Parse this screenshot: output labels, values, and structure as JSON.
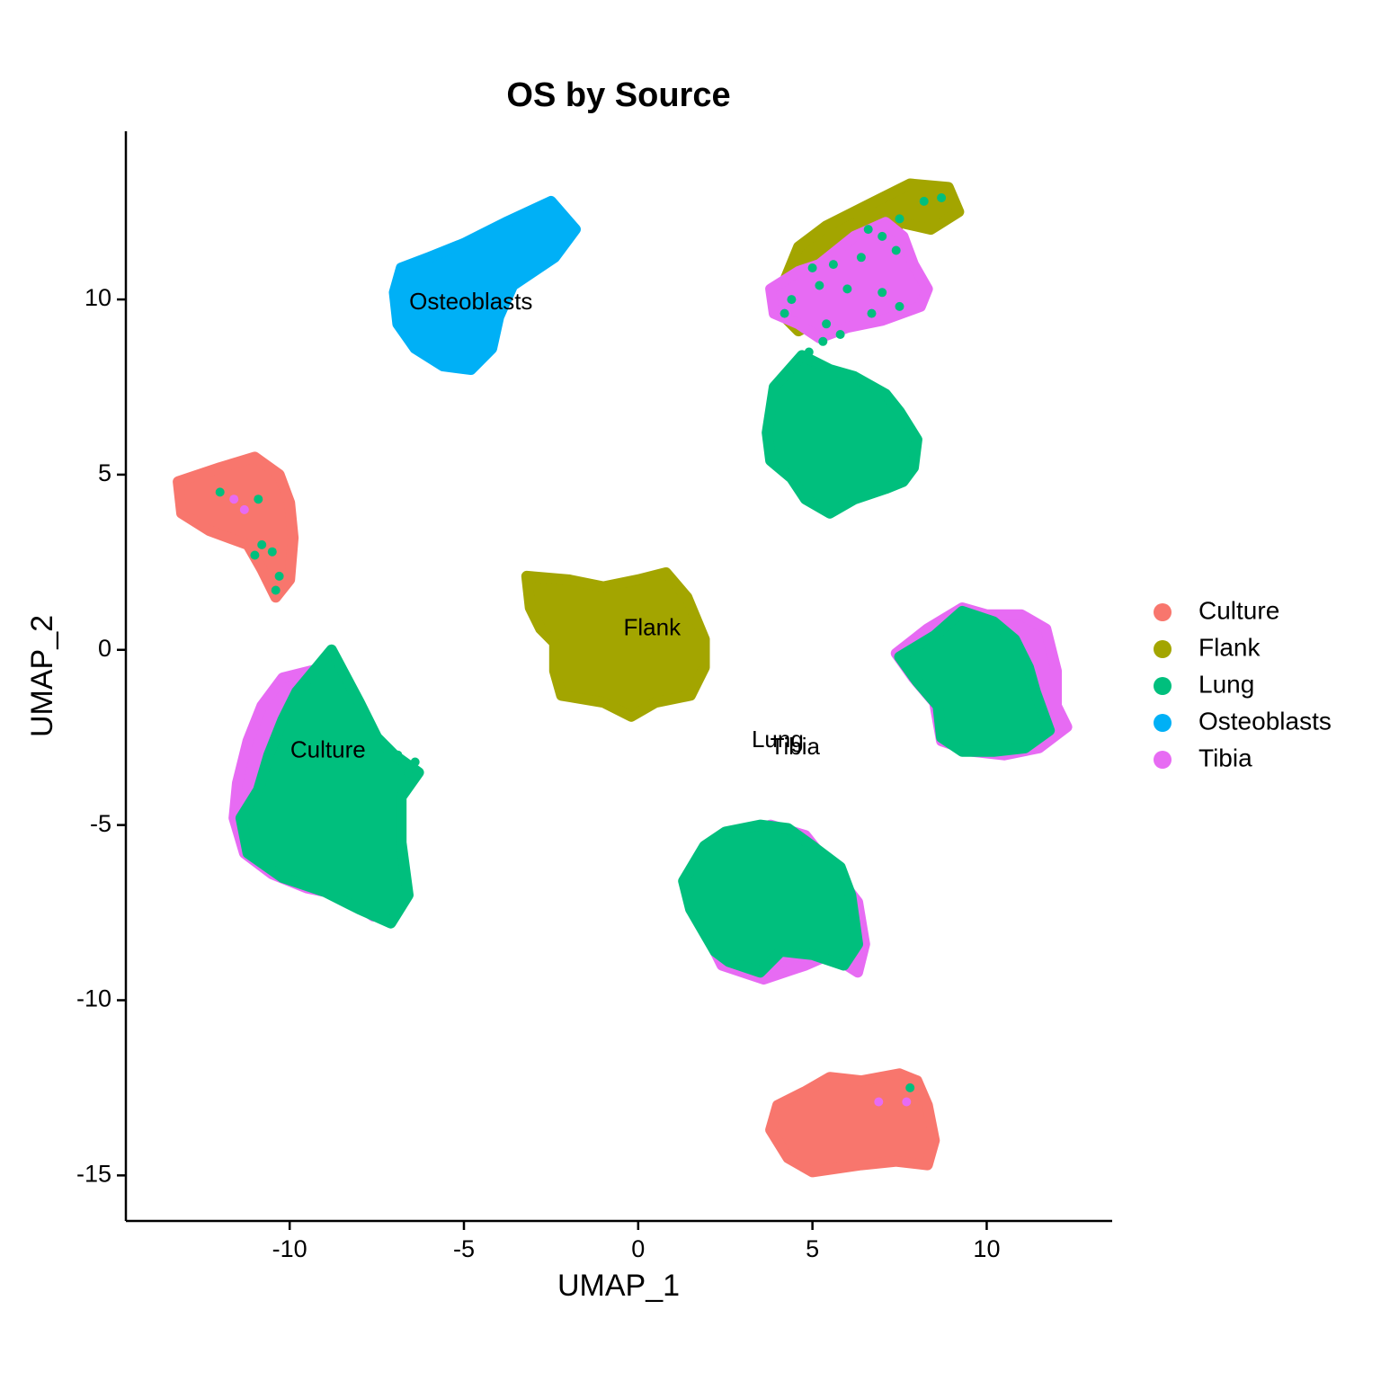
{
  "chart_data": {
    "type": "scatter",
    "title": "OS by Source",
    "xlabel": "UMAP_1",
    "ylabel": "UMAP_2",
    "xlim": [
      -14.7,
      13.6
    ],
    "ylim": [
      -16.3,
      14.8
    ],
    "x_ticks": [
      -10,
      -5,
      0,
      5,
      10
    ],
    "x_tick_labels": [
      "-10",
      "-5",
      "0",
      "5",
      "10"
    ],
    "y_ticks": [
      -15,
      -10,
      -5,
      0,
      5,
      10
    ],
    "y_tick_labels": [
      "-15",
      "-10",
      "-5",
      "0",
      "5",
      "10"
    ],
    "grid": false,
    "legend_position": "right",
    "series": [
      {
        "name": "Culture",
        "color": "#F8766D"
      },
      {
        "name": "Flank",
        "color": "#A3A500"
      },
      {
        "name": "Lung",
        "color": "#00BF7D"
      },
      {
        "name": "Osteoblasts",
        "color": "#00B0F6"
      },
      {
        "name": "Tibia",
        "color": "#E76BF3"
      }
    ],
    "clusters": [
      {
        "series": "Osteoblasts",
        "polygon": [
          [
            -7.0,
            10.2
          ],
          [
            -6.8,
            10.9
          ],
          [
            -6.0,
            11.2
          ],
          [
            -5.0,
            11.6
          ],
          [
            -3.8,
            12.2
          ],
          [
            -2.5,
            12.8
          ],
          [
            -1.8,
            12.0
          ],
          [
            -2.4,
            11.2
          ],
          [
            -3.6,
            10.4
          ],
          [
            -4.0,
            9.5
          ],
          [
            -4.2,
            8.6
          ],
          [
            -4.8,
            8.0
          ],
          [
            -5.6,
            8.1
          ],
          [
            -6.4,
            8.6
          ],
          [
            -6.9,
            9.3
          ]
        ]
      },
      {
        "series": "Culture",
        "polygon": [
          [
            -13.2,
            4.8
          ],
          [
            -12.0,
            5.2
          ],
          [
            -11.0,
            5.5
          ],
          [
            -10.3,
            5.0
          ],
          [
            -10.0,
            4.2
          ],
          [
            -9.9,
            3.2
          ],
          [
            -10.0,
            2.0
          ],
          [
            -10.4,
            1.5
          ],
          [
            -10.8,
            2.3
          ],
          [
            -11.2,
            3.0
          ],
          [
            -12.3,
            3.4
          ],
          [
            -13.1,
            3.9
          ]
        ]
      },
      {
        "series": "Flank",
        "polygon": [
          [
            -3.2,
            2.1
          ],
          [
            -2.0,
            2.0
          ],
          [
            -1.0,
            1.8
          ],
          [
            0.0,
            2.0
          ],
          [
            0.8,
            2.2
          ],
          [
            1.4,
            1.5
          ],
          [
            1.9,
            0.3
          ],
          [
            1.9,
            -0.5
          ],
          [
            1.5,
            -1.3
          ],
          [
            0.5,
            -1.5
          ],
          [
            -0.2,
            -1.9
          ],
          [
            -1.0,
            -1.5
          ],
          [
            -2.2,
            -1.3
          ],
          [
            -2.4,
            -0.6
          ],
          [
            -2.4,
            0.2
          ],
          [
            -2.8,
            0.6
          ],
          [
            -3.1,
            1.2
          ]
        ]
      },
      {
        "series": "Tibia",
        "polygon": [
          [
            -10.2,
            -0.8
          ],
          [
            -9.0,
            -0.5
          ],
          [
            -8.6,
            -1.0
          ],
          [
            -8.0,
            -2.0
          ],
          [
            -7.2,
            -3.5
          ],
          [
            -7.0,
            -5.0
          ],
          [
            -6.9,
            -6.5
          ],
          [
            -7.0,
            -7.4
          ],
          [
            -7.6,
            -7.6
          ],
          [
            -8.5,
            -7.0
          ],
          [
            -9.5,
            -6.8
          ],
          [
            -10.5,
            -6.4
          ],
          [
            -11.3,
            -5.8
          ],
          [
            -11.6,
            -4.8
          ],
          [
            -11.5,
            -3.8
          ],
          [
            -11.2,
            -2.6
          ],
          [
            -10.8,
            -1.6
          ]
        ]
      },
      {
        "series": "Lung",
        "polygon": [
          [
            -9.8,
            -1.2
          ],
          [
            -8.8,
            0.0
          ],
          [
            -8.0,
            -1.5
          ],
          [
            -7.5,
            -2.5
          ],
          [
            -7.0,
            -3.0
          ],
          [
            -6.3,
            -3.5
          ],
          [
            -6.8,
            -4.2
          ],
          [
            -6.8,
            -5.5
          ],
          [
            -6.6,
            -7.0
          ],
          [
            -7.1,
            -7.8
          ],
          [
            -8.0,
            -7.4
          ],
          [
            -9.0,
            -6.9
          ],
          [
            -10.2,
            -6.5
          ],
          [
            -11.2,
            -5.8
          ],
          [
            -11.4,
            -4.8
          ],
          [
            -10.9,
            -4.0
          ],
          [
            -10.6,
            -3.0
          ],
          [
            -10.2,
            -2.0
          ]
        ]
      },
      {
        "series": "Flank",
        "polygon": [
          [
            3.9,
            9.8
          ],
          [
            4.6,
            11.5
          ],
          [
            5.4,
            12.1
          ],
          [
            6.8,
            12.8
          ],
          [
            7.8,
            13.3
          ],
          [
            8.9,
            13.2
          ],
          [
            9.2,
            12.5
          ],
          [
            8.4,
            12.0
          ],
          [
            7.5,
            12.2
          ],
          [
            7.2,
            11.5
          ],
          [
            6.3,
            10.5
          ],
          [
            5.5,
            9.6
          ],
          [
            4.6,
            9.1
          ]
        ]
      },
      {
        "series": "Tibia",
        "polygon": [
          [
            3.8,
            10.3
          ],
          [
            4.6,
            10.8
          ],
          [
            5.2,
            11.0
          ],
          [
            6.2,
            11.8
          ],
          [
            7.1,
            12.2
          ],
          [
            7.6,
            11.8
          ],
          [
            7.9,
            11.0
          ],
          [
            8.3,
            10.3
          ],
          [
            8.1,
            9.8
          ],
          [
            7.0,
            9.4
          ],
          [
            6.0,
            9.2
          ],
          [
            5.2,
            8.9
          ],
          [
            4.6,
            9.3
          ],
          [
            3.9,
            9.6
          ]
        ]
      },
      {
        "series": "Lung",
        "polygon": [
          [
            3.9,
            7.5
          ],
          [
            4.7,
            8.4
          ],
          [
            5.5,
            8.0
          ],
          [
            6.2,
            7.8
          ],
          [
            7.1,
            7.3
          ],
          [
            7.5,
            6.8
          ],
          [
            8.0,
            6.0
          ],
          [
            7.9,
            5.2
          ],
          [
            7.6,
            4.8
          ],
          [
            7.1,
            4.6
          ],
          [
            6.2,
            4.3
          ],
          [
            5.5,
            3.9
          ],
          [
            4.8,
            4.3
          ],
          [
            4.4,
            4.9
          ],
          [
            3.8,
            5.4
          ],
          [
            3.7,
            6.2
          ]
        ]
      },
      {
        "series": "Tibia",
        "polygon": [
          [
            7.4,
            -0.1
          ],
          [
            8.3,
            0.6
          ],
          [
            9.3,
            1.2
          ],
          [
            10.0,
            1.0
          ],
          [
            11.0,
            1.0
          ],
          [
            11.7,
            0.6
          ],
          [
            12.0,
            -0.6
          ],
          [
            12.0,
            -1.6
          ],
          [
            12.3,
            -2.2
          ],
          [
            11.5,
            -2.8
          ],
          [
            10.5,
            -3.0
          ],
          [
            9.6,
            -2.9
          ],
          [
            8.7,
            -2.6
          ],
          [
            8.5,
            -1.5
          ],
          [
            7.9,
            -0.8
          ]
        ]
      },
      {
        "series": "Lung",
        "polygon": [
          [
            7.5,
            -0.2
          ],
          [
            8.5,
            0.4
          ],
          [
            9.3,
            1.1
          ],
          [
            10.2,
            0.8
          ],
          [
            10.8,
            0.3
          ],
          [
            11.2,
            -0.5
          ],
          [
            11.4,
            -1.2
          ],
          [
            11.8,
            -2.3
          ],
          [
            11.1,
            -2.8
          ],
          [
            10.2,
            -2.9
          ],
          [
            9.3,
            -2.9
          ],
          [
            8.7,
            -2.5
          ],
          [
            8.6,
            -1.6
          ],
          [
            8.0,
            -0.9
          ]
        ]
      },
      {
        "series": "Tibia",
        "polygon": [
          [
            1.5,
            -6.5
          ],
          [
            2.5,
            -5.5
          ],
          [
            3.8,
            -5.0
          ],
          [
            4.8,
            -5.3
          ],
          [
            5.6,
            -6.3
          ],
          [
            6.3,
            -7.2
          ],
          [
            6.5,
            -8.4
          ],
          [
            6.3,
            -9.2
          ],
          [
            5.5,
            -8.7
          ],
          [
            4.8,
            -9.0
          ],
          [
            3.6,
            -9.4
          ],
          [
            2.4,
            -9.0
          ],
          [
            1.9,
            -8.0
          ],
          [
            1.6,
            -7.2
          ]
        ]
      },
      {
        "series": "Lung",
        "polygon": [
          [
            1.3,
            -6.6
          ],
          [
            1.9,
            -5.6
          ],
          [
            2.5,
            -5.2
          ],
          [
            3.5,
            -5.0
          ],
          [
            4.3,
            -5.1
          ],
          [
            5.0,
            -5.6
          ],
          [
            5.8,
            -6.2
          ],
          [
            6.1,
            -7.0
          ],
          [
            6.3,
            -8.4
          ],
          [
            5.9,
            -9.0
          ],
          [
            5.0,
            -8.7
          ],
          [
            4.1,
            -8.6
          ],
          [
            3.5,
            -9.2
          ],
          [
            2.6,
            -8.9
          ],
          [
            2.2,
            -8.6
          ],
          [
            1.5,
            -7.4
          ]
        ]
      },
      {
        "series": "Culture",
        "polygon": [
          [
            4.0,
            -13.0
          ],
          [
            4.8,
            -12.6
          ],
          [
            5.5,
            -12.2
          ],
          [
            6.4,
            -12.3
          ],
          [
            7.5,
            -12.1
          ],
          [
            8.0,
            -12.3
          ],
          [
            8.3,
            -13.0
          ],
          [
            8.5,
            -14.0
          ],
          [
            8.3,
            -14.7
          ],
          [
            7.4,
            -14.6
          ],
          [
            6.4,
            -14.7
          ],
          [
            5.0,
            -14.9
          ],
          [
            4.3,
            -14.5
          ],
          [
            3.8,
            -13.7
          ]
        ]
      }
    ],
    "scatter_points": [
      {
        "series": "Lung",
        "x": -12.0,
        "y": 4.5
      },
      {
        "series": "Lung",
        "x": -10.9,
        "y": 4.3
      },
      {
        "series": "Lung",
        "x": -10.8,
        "y": 3.0
      },
      {
        "series": "Lung",
        "x": -11.0,
        "y": 2.7
      },
      {
        "series": "Lung",
        "x": -10.5,
        "y": 2.8
      },
      {
        "series": "Lung",
        "x": -10.3,
        "y": 2.1
      },
      {
        "series": "Lung",
        "x": -10.4,
        "y": 1.7
      },
      {
        "series": "Tibia",
        "x": -11.6,
        "y": 4.3
      },
      {
        "series": "Tibia",
        "x": -11.3,
        "y": 4.0
      },
      {
        "series": "Lung",
        "x": 7.8,
        "y": -12.5
      },
      {
        "series": "Tibia",
        "x": 6.9,
        "y": -12.9
      },
      {
        "series": "Tibia",
        "x": 7.7,
        "y": -12.9
      },
      {
        "series": "Lung",
        "x": 8.2,
        "y": 12.8
      },
      {
        "series": "Lung",
        "x": 8.7,
        "y": 12.9
      },
      {
        "series": "Lung",
        "x": 7.5,
        "y": 12.3
      },
      {
        "series": "Lung",
        "x": 7.0,
        "y": 11.8
      },
      {
        "series": "Lung",
        "x": 6.4,
        "y": 11.2
      },
      {
        "series": "Lung",
        "x": 7.4,
        "y": 11.4
      },
      {
        "series": "Lung",
        "x": 5.6,
        "y": 11.0
      },
      {
        "series": "Lung",
        "x": 5.2,
        "y": 10.4
      },
      {
        "series": "Lung",
        "x": 4.4,
        "y": 10.0
      },
      {
        "series": "Lung",
        "x": 4.2,
        "y": 9.6
      },
      {
        "series": "Lung",
        "x": 6.0,
        "y": 10.3
      },
      {
        "series": "Lung",
        "x": 7.0,
        "y": 10.2
      },
      {
        "series": "Lung",
        "x": 7.5,
        "y": 9.8
      },
      {
        "series": "Lung",
        "x": 5.4,
        "y": 9.3
      },
      {
        "series": "Lung",
        "x": 5.8,
        "y": 9.0
      },
      {
        "series": "Lung",
        "x": 6.7,
        "y": 9.6
      },
      {
        "series": "Lung",
        "x": 4.9,
        "y": 8.5
      },
      {
        "series": "Lung",
        "x": 5.3,
        "y": 8.8
      },
      {
        "series": "Lung",
        "x": 5.0,
        "y": 10.9
      },
      {
        "series": "Lung",
        "x": 6.6,
        "y": 12.0
      },
      {
        "series": "Lung",
        "x": -6.6,
        "y": -3.5
      },
      {
        "series": "Lung",
        "x": -6.4,
        "y": -3.2
      },
      {
        "series": "Lung",
        "x": -6.9,
        "y": -3.0
      }
    ],
    "annotations": [
      {
        "text": "Osteoblasts",
        "x": -4.8,
        "y": 9.9
      },
      {
        "text": "Flank",
        "x": 0.4,
        "y": 0.6
      },
      {
        "text": "Culture",
        "x": -8.9,
        "y": -2.9
      },
      {
        "text": "Lung",
        "x": 4.0,
        "y": -2.6
      },
      {
        "text": "Tibia",
        "x": 4.5,
        "y": -2.8
      }
    ]
  }
}
